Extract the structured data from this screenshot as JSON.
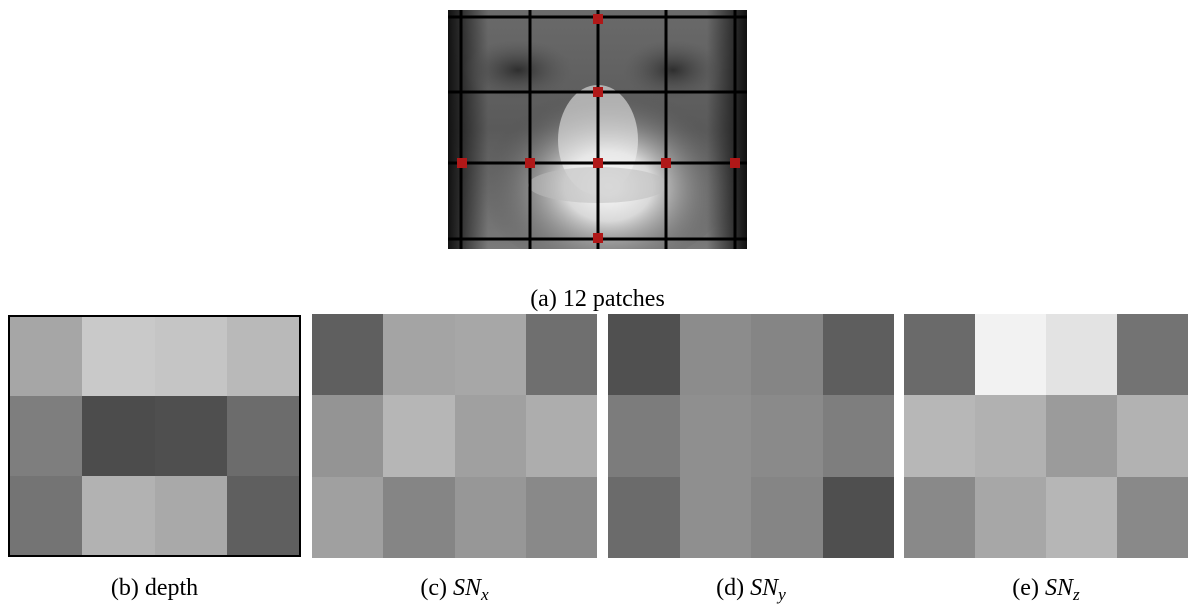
{
  "figure_a": {
    "caption": "(a) 12 patches",
    "marker_color": "#b01818",
    "grid_color": "#000000"
  },
  "panels": [
    {
      "id": "b",
      "caption_prefix": "(b) ",
      "caption_main": "depth",
      "caption_sub": "",
      "border": true,
      "cells": [
        "#a6a6a6",
        "#c9c9c9",
        "#c5c5c5",
        "#b9b9b9",
        "#7e7e7e",
        "#4c4c4c",
        "#4f4f4f",
        "#6c6c6c",
        "#747474",
        "#b2b2b2",
        "#a9a9a9",
        "#5f5f5f"
      ]
    },
    {
      "id": "c",
      "caption_prefix": "(c) ",
      "caption_main": "SN",
      "caption_sub": "x",
      "border": false,
      "cells": [
        "#5f5f5f",
        "#a4a4a4",
        "#a7a7a7",
        "#6f6f6f",
        "#949494",
        "#b6b6b6",
        "#a0a0a0",
        "#adadad",
        "#a0a0a0",
        "#858585",
        "#979797",
        "#898989"
      ]
    },
    {
      "id": "d",
      "caption_prefix": "(d) ",
      "caption_main": "SN",
      "caption_sub": "y",
      "border": false,
      "cells": [
        "#505050",
        "#8c8c8c",
        "#858585",
        "#5e5e5e",
        "#7c7c7c",
        "#8f8f8f",
        "#8a8a8a",
        "#7e7e7e",
        "#6b6b6b",
        "#8f8f8f",
        "#858585",
        "#4f4f4f"
      ]
    },
    {
      "id": "e",
      "caption_prefix": "(e) ",
      "caption_main": "SN",
      "caption_sub": "z",
      "border": false,
      "cells": [
        "#6a6a6a",
        "#f2f2f2",
        "#e3e3e3",
        "#737373",
        "#b7b7b7",
        "#b1b1b1",
        "#9b9b9b",
        "#b2b2b2",
        "#898989",
        "#a7a7a7",
        "#b6b6b6",
        "#898989"
      ]
    }
  ]
}
